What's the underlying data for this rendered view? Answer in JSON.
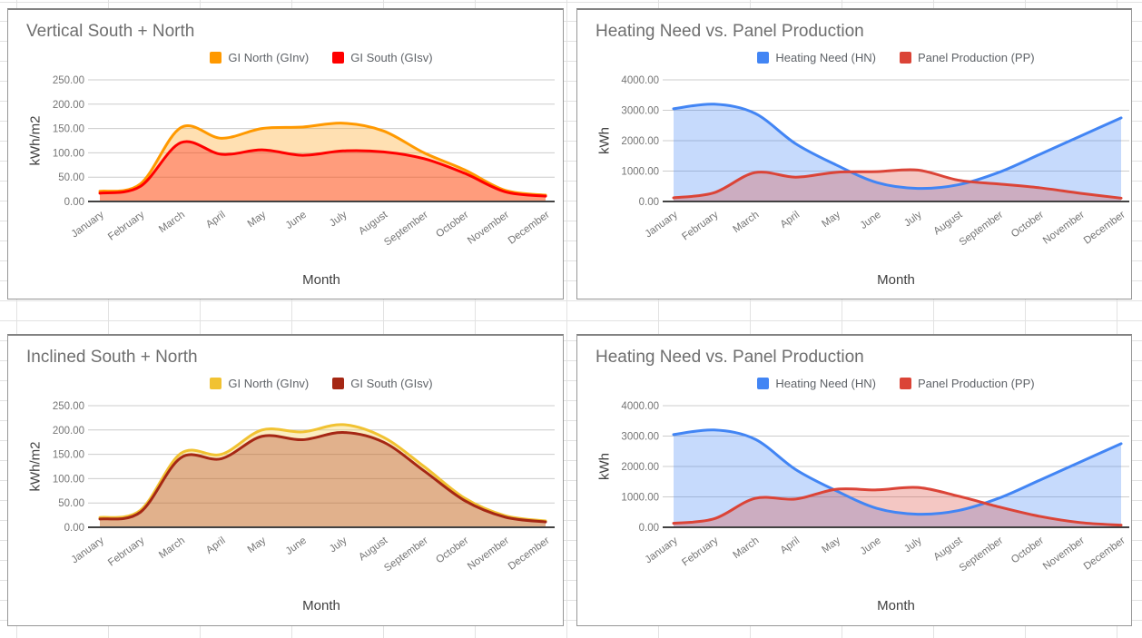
{
  "app_context": "spreadsheet chart grid (4 embedded area charts)",
  "background": {
    "grid_line_color": "#e2e2e2",
    "card_border_color": "#979797"
  },
  "chart_data": [
    {
      "type": "area",
      "position": "top-left",
      "title": "Vertical South + North",
      "xlabel": "Month",
      "ylabel": "kWh/m2",
      "ylim": [
        0,
        250
      ],
      "y_ticks": [
        "0.00",
        "50.00",
        "100.00",
        "150.00",
        "200.00",
        "250.00"
      ],
      "grid": true,
      "smooth": true,
      "legend_position": "top",
      "categories": [
        "January",
        "February",
        "March",
        "April",
        "May",
        "June",
        "July",
        "August",
        "September",
        "October",
        "November",
        "December"
      ],
      "series": [
        {
          "name": "GI North (GInv)",
          "color": "#FF9900",
          "fill_opacity": 0.3,
          "values": [
            21,
            36,
            152,
            130,
            150,
            153,
            161,
            145,
            100,
            65,
            23,
            13
          ]
        },
        {
          "name": "GI South (GIsv)",
          "color": "#FF0000",
          "fill_opacity": 0.3,
          "values": [
            17,
            31,
            121,
            97,
            106,
            95,
            104,
            102,
            88,
            58,
            20,
            11
          ]
        }
      ]
    },
    {
      "type": "area",
      "position": "top-right",
      "title": "Heating Need vs. Panel Production",
      "xlabel": "Month",
      "ylabel": "kWh",
      "ylim": [
        0,
        4000
      ],
      "y_ticks": [
        "0.00",
        "1000.00",
        "2000.00",
        "3000.00",
        "4000.00"
      ],
      "grid": true,
      "smooth": true,
      "legend_position": "top",
      "categories": [
        "January",
        "February",
        "March",
        "April",
        "May",
        "June",
        "July",
        "August",
        "September",
        "October",
        "November",
        "December"
      ],
      "series": [
        {
          "name": "Heating Need (HN)",
          "color": "#4285F4",
          "fill_opacity": 0.3,
          "values": [
            3050,
            3200,
            2900,
            1900,
            1200,
            620,
            430,
            550,
            960,
            1550,
            2150,
            2750
          ]
        },
        {
          "name": "Panel Production (PP)",
          "color": "#DB4437",
          "fill_opacity": 0.3,
          "values": [
            120,
            290,
            950,
            800,
            960,
            980,
            1035,
            700,
            575,
            450,
            270,
            110
          ]
        }
      ]
    },
    {
      "type": "area",
      "position": "bottom-left",
      "title": "Inclined South + North",
      "xlabel": "Month",
      "ylabel": "kWh/m2",
      "ylim": [
        0,
        250
      ],
      "y_ticks": [
        "0.00",
        "50.00",
        "100.00",
        "150.00",
        "200.00",
        "250.00"
      ],
      "grid": true,
      "smooth": true,
      "legend_position": "top",
      "categories": [
        "January",
        "February",
        "March",
        "April",
        "May",
        "June",
        "July",
        "August",
        "September",
        "October",
        "November",
        "December"
      ],
      "series": [
        {
          "name": "GI North (GInv)",
          "color": "#F1C232",
          "fill_opacity": 0.3,
          "values": [
            20,
            35,
            152,
            150,
            200,
            196,
            211,
            185,
            125,
            60,
            24,
            13
          ]
        },
        {
          "name": "GI South (GIsv)",
          "color": "#A52714",
          "fill_opacity": 0.3,
          "values": [
            17,
            31,
            143,
            141,
            187,
            180,
            195,
            175,
            116,
            55,
            21,
            11
          ]
        }
      ]
    },
    {
      "type": "area",
      "position": "bottom-right",
      "title": "Heating Need vs. Panel Production",
      "xlabel": "Month",
      "ylabel": "kWh",
      "ylim": [
        0,
        4000
      ],
      "y_ticks": [
        "0.00",
        "1000.00",
        "2000.00",
        "3000.00",
        "4000.00"
      ],
      "grid": true,
      "smooth": true,
      "legend_position": "top",
      "categories": [
        "January",
        "February",
        "March",
        "April",
        "May",
        "June",
        "July",
        "August",
        "September",
        "October",
        "November",
        "December"
      ],
      "series": [
        {
          "name": "Heating Need (HN)",
          "color": "#4285F4",
          "fill_opacity": 0.3,
          "values": [
            3050,
            3200,
            2900,
            1900,
            1200,
            620,
            430,
            550,
            960,
            1550,
            2150,
            2750
          ]
        },
        {
          "name": "Panel Production (PP)",
          "color": "#DB4437",
          "fill_opacity": 0.3,
          "values": [
            130,
            280,
            950,
            930,
            1250,
            1230,
            1310,
            1025,
            670,
            360,
            155,
            70
          ]
        }
      ]
    }
  ]
}
